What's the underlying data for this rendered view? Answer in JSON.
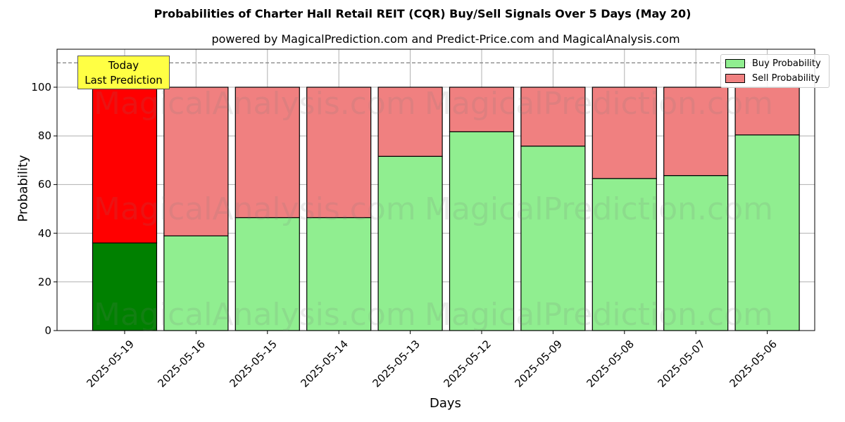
{
  "title": "Probabilities of Charter Hall Retail REIT (CQR) Buy/Sell Signals Over 5 Days (May 20)",
  "subtitle": "powered by MagicalPrediction.com and Predict-Price.com and MagicalAnalysis.com",
  "annotation": {
    "line1": "Today",
    "line2": "Last Prediction"
  },
  "legend": {
    "buy": "Buy Probability",
    "sell": "Sell Probability"
  },
  "axes": {
    "xlabel": "Days",
    "ylabel": "Probability",
    "yticks": [
      "0",
      "20",
      "40",
      "60",
      "80",
      "100"
    ]
  },
  "watermarks": [
    "MagicalAnalysis.com",
    "MagicalPrediction.com"
  ],
  "colors": {
    "buy_today": "#008000",
    "sell_today": "#ff0000",
    "buy": "#90ee90",
    "sell": "#f08080",
    "annotation_bg": "#ffff44"
  },
  "chart_data": {
    "type": "bar",
    "stacked": true,
    "title": "Probabilities of Charter Hall Retail REIT (CQR) Buy/Sell Signals Over 5 Days (May 20)",
    "subtitle": "powered by MagicalPrediction.com and Predict-Price.com and MagicalAnalysis.com",
    "xlabel": "Days",
    "ylabel": "Probability",
    "ylim": [
      0,
      115
    ],
    "grid": true,
    "legend_position": "upper right",
    "reference_line": 110,
    "categories": [
      "2025-05-19",
      "2025-05-16",
      "2025-05-15",
      "2025-05-14",
      "2025-05-13",
      "2025-05-12",
      "2025-05-09",
      "2025-05-08",
      "2025-05-07",
      "2025-05-06"
    ],
    "series": [
      {
        "name": "Buy Probability",
        "values": [
          36.0,
          38.9,
          46.4,
          46.4,
          71.6,
          81.7,
          75.8,
          62.5,
          63.7,
          80.4
        ]
      },
      {
        "name": "Sell Probability",
        "values": [
          64.0,
          61.1,
          53.6,
          53.6,
          28.4,
          18.3,
          24.2,
          37.5,
          36.3,
          19.6
        ]
      }
    ],
    "annotations": [
      "Today\nLast Prediction"
    ]
  }
}
